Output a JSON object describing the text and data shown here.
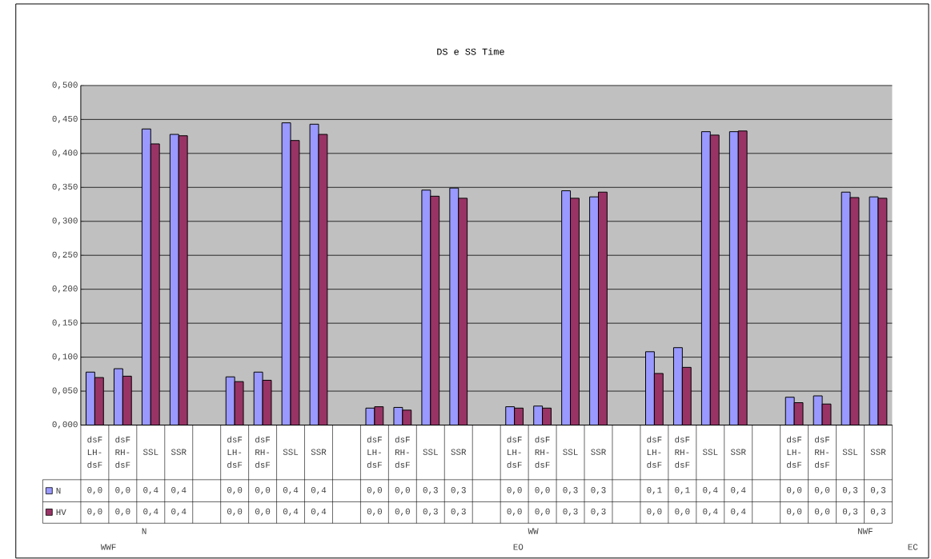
{
  "chart_data": {
    "type": "bar",
    "title": "DS e SS Time",
    "categories": [
      "dsF LH-dsF",
      "dsF RH-dsF",
      "SSL",
      "SSR",
      null,
      "dsF LH-dsF",
      "dsF RH-dsF",
      "SSL",
      "SSR",
      null,
      "dsF LH-dsF",
      "dsF RH-dsF",
      "SSL",
      "SSR",
      null,
      "dsF LH-dsF",
      "dsF RH-dsF",
      "SSL",
      "SSR",
      null,
      "dsF LH-dsF",
      "dsF RH-dsF",
      "SSL",
      "SSR",
      null,
      "dsF LH-dsF",
      "dsF RH-dsF",
      "SSL",
      "SSR"
    ],
    "series": [
      {
        "name": "N",
        "color": "#9999ff",
        "values": [
          0.078,
          0.083,
          0.436,
          0.428,
          null,
          0.071,
          0.078,
          0.445,
          0.443,
          null,
          0.025,
          0.026,
          0.346,
          0.349,
          null,
          0.027,
          0.028,
          0.345,
          0.336,
          null,
          0.108,
          0.114,
          0.432,
          0.432,
          null,
          0.041,
          0.043,
          0.343,
          0.336
        ]
      },
      {
        "name": "HV",
        "color": "#993366",
        "values": [
          0.07,
          0.072,
          0.414,
          0.426,
          null,
          0.064,
          0.066,
          0.419,
          0.428,
          null,
          0.027,
          0.022,
          0.337,
          0.334,
          null,
          0.025,
          0.025,
          0.334,
          0.343,
          null,
          0.076,
          0.085,
          0.427,
          0.433,
          null,
          0.033,
          0.031,
          0.335,
          0.334
        ]
      }
    ],
    "ylim": [
      0,
      0.5
    ],
    "yticks": [
      {
        "value": 0,
        "label": "0,000"
      },
      {
        "value": 0.05,
        "label": "0,050"
      },
      {
        "value": 0.1,
        "label": "0,100"
      },
      {
        "value": 0.15,
        "label": "0,150"
      },
      {
        "value": 0.2,
        "label": "0,200"
      },
      {
        "value": 0.25,
        "label": "0,250"
      },
      {
        "value": 0.3,
        "label": "0,300"
      },
      {
        "value": 0.35,
        "label": "0,350"
      },
      {
        "value": 0.4,
        "label": "0,400"
      },
      {
        "value": 0.45,
        "label": "0,450"
      },
      {
        "value": 0.5,
        "label": "0,500"
      }
    ],
    "grid": "y",
    "legend": "bottom",
    "annotations": [
      "N",
      "WWF",
      "WW",
      "EO",
      "NWF",
      "EC",
      "0,0",
      "0,0",
      "0,4",
      "0,4",
      "0,0",
      "0,0",
      "0,4",
      "0,4",
      "0,0",
      "0,0",
      "0,3",
      "0,3",
      "0,0",
      "0,0",
      "0,3",
      "0,3",
      "0,1",
      "0,1",
      "0,4",
      "0,4",
      "0,0",
      "0,0",
      "0,3",
      "0,3",
      "0,0",
      "0,0",
      "0,4",
      "0,4",
      "0,0",
      "0,0",
      "0,4",
      "0,4",
      "0,0",
      "0,0",
      "0,3",
      "0,3",
      "0,0",
      "0,0",
      "0,3",
      "0,3",
      "0,0",
      "0,0",
      "0,4",
      "0,4",
      "0,0",
      "0,0",
      "0,3",
      "0,3"
    ]
  }
}
